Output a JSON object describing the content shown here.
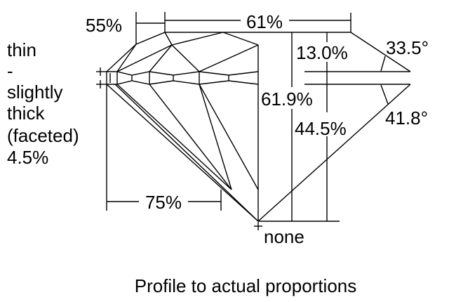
{
  "labels": {
    "crown_height_table_left": "55%",
    "table": "61%",
    "crown_height": "13.0%",
    "crown_angle": "33.5°",
    "total_depth": "61.9%",
    "pavilion_depth": "44.5%",
    "pavilion_angle": "41.8°",
    "lower_half": "75%",
    "culet": "none",
    "girdle": [
      "thin",
      "-",
      "slightly",
      "thick",
      "(faceted)",
      "4.5%"
    ]
  },
  "caption": "Profile to actual proportions",
  "colors": {
    "line": "#000000",
    "background": "#ffffff"
  }
}
